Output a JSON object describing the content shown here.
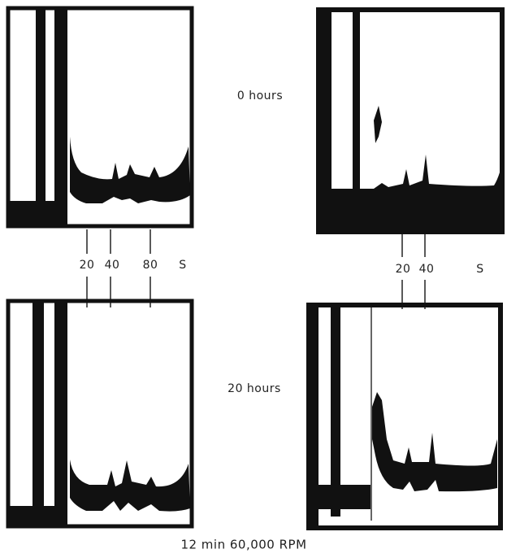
{
  "labels": {
    "top": "0 hours",
    "bottom": "20 hours"
  },
  "left_scale": {
    "marks": [
      "20",
      "40",
      "80"
    ],
    "unit": "S"
  },
  "right_scale": {
    "marks": [
      "20",
      "40"
    ],
    "unit": "S"
  },
  "caption": "12 min 60,000 RPM"
}
